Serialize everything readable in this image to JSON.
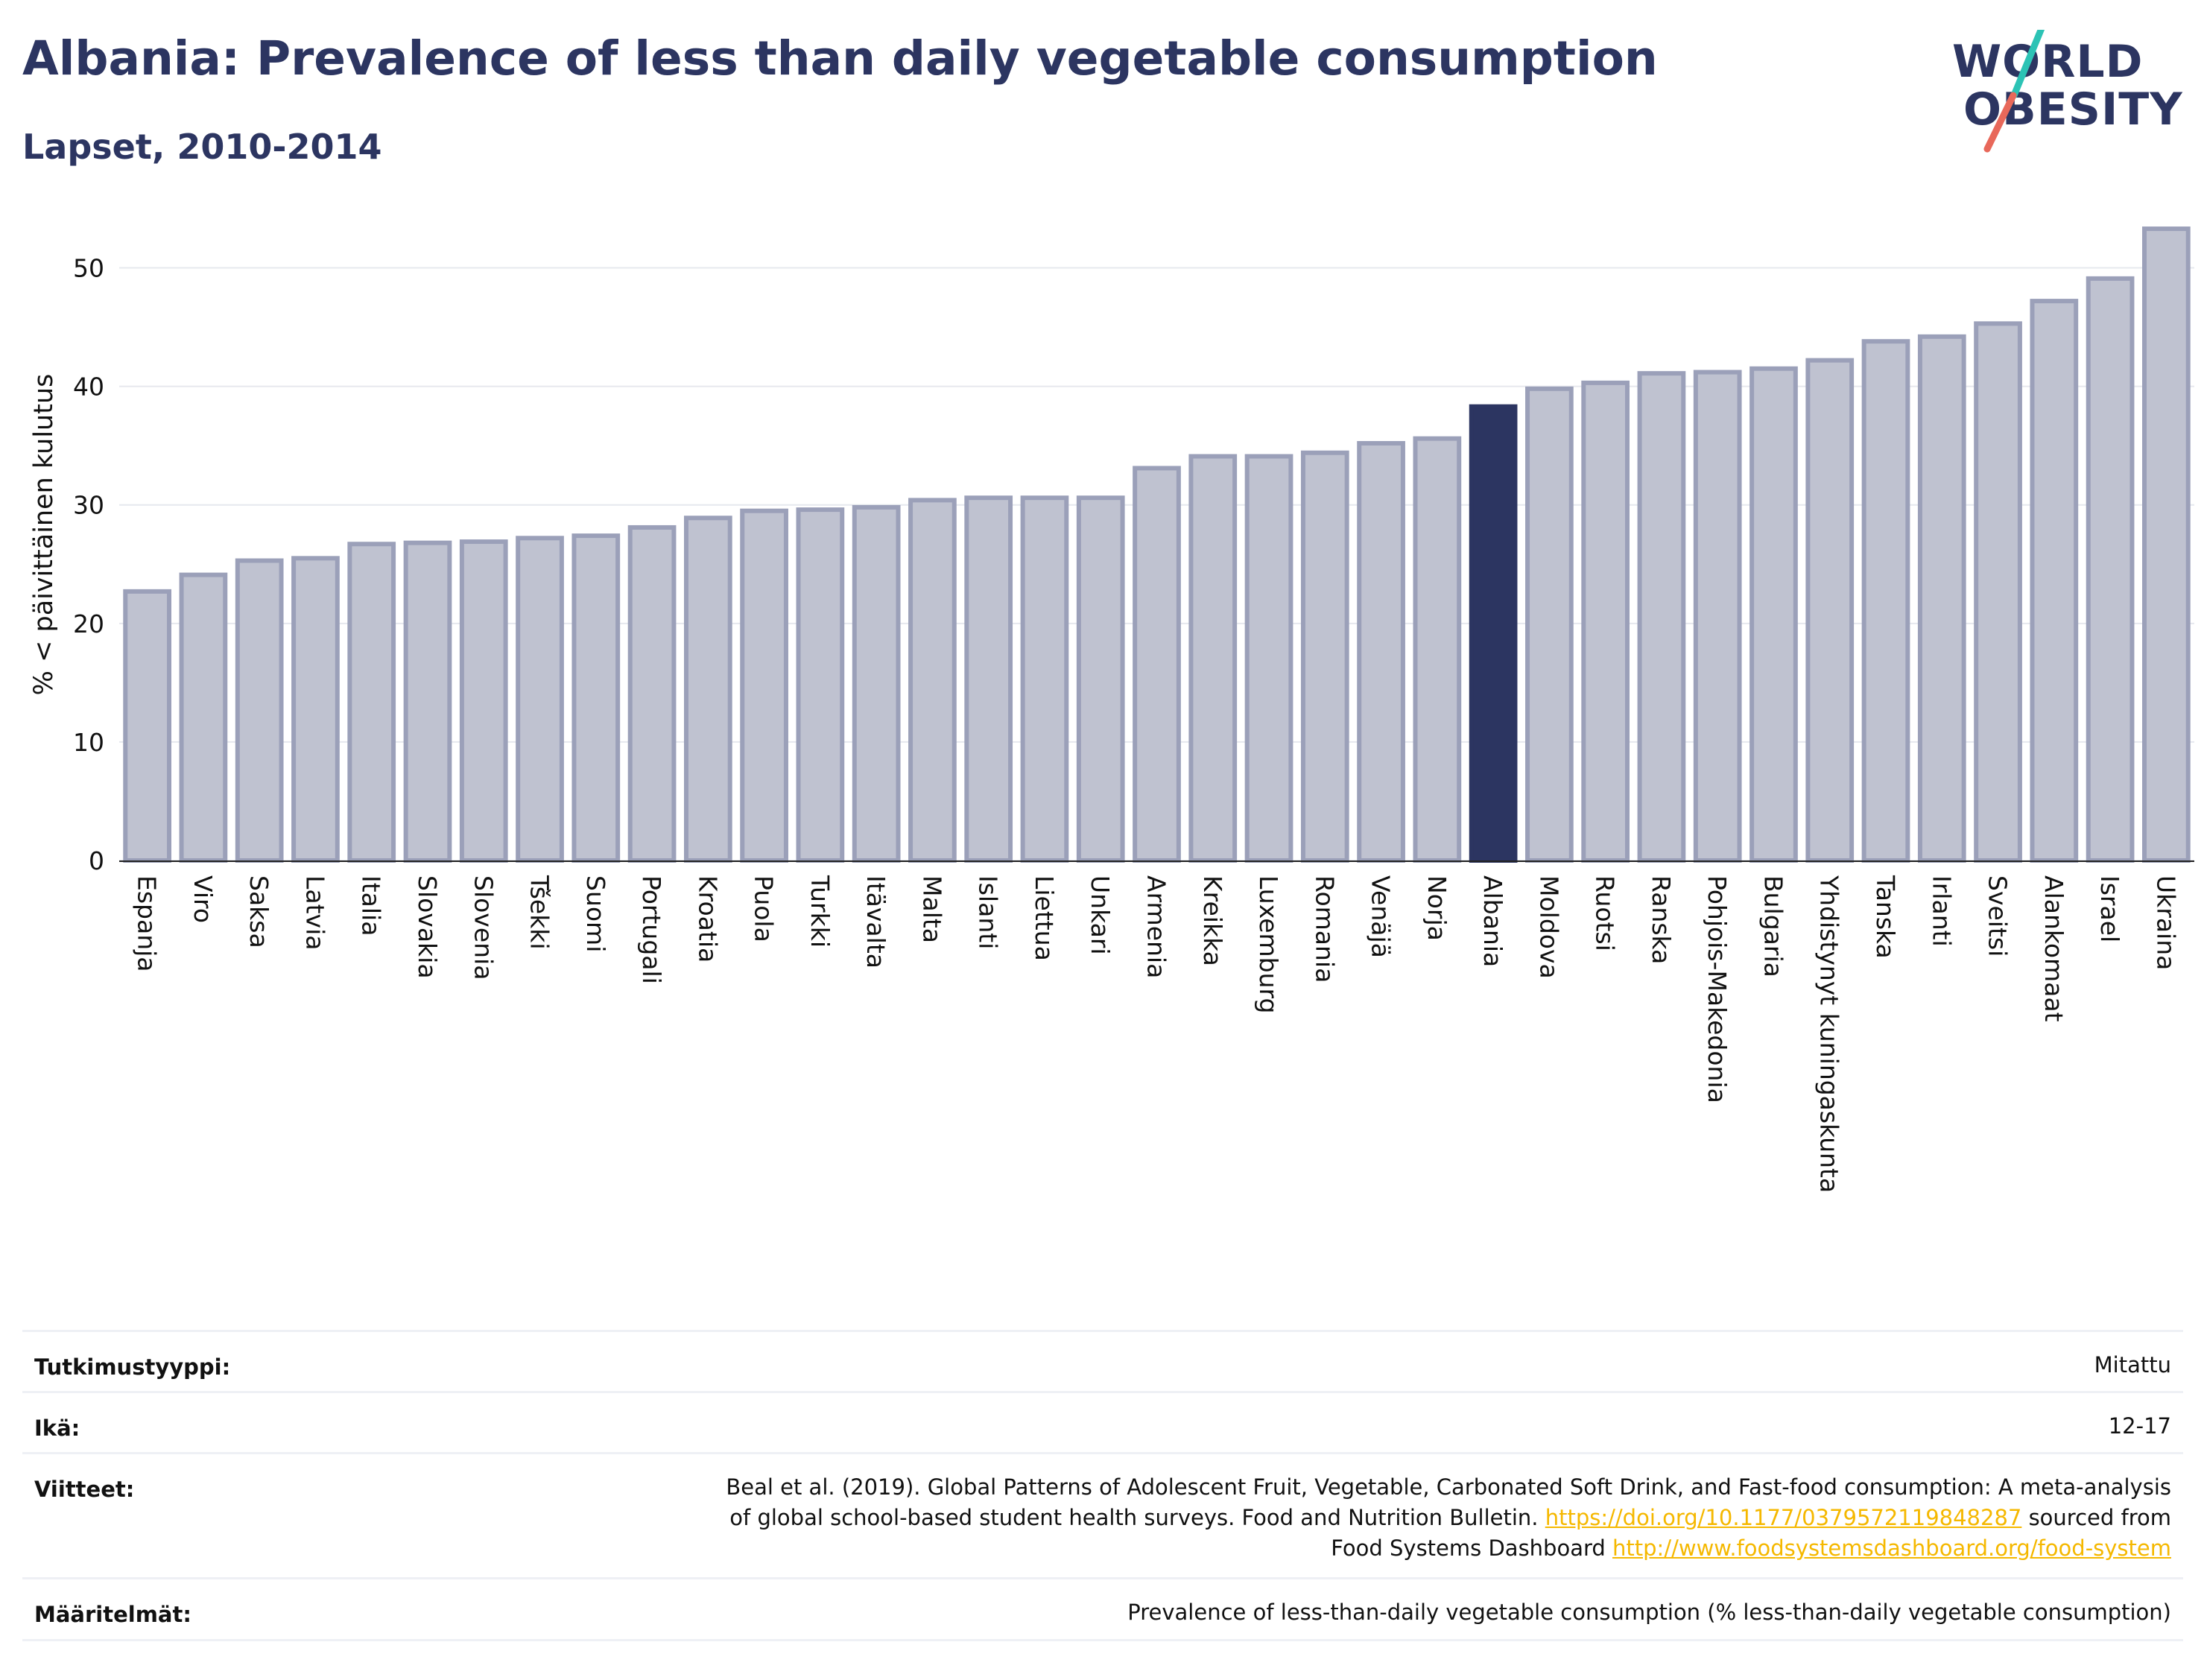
{
  "title": "Albania: Prevalence of less than daily vegetable consumption",
  "subtitle": "Lapset, 2010-2014",
  "logo": {
    "line1": "WORLD",
    "line2": "OBESITY",
    "accent_colors": [
      "#2cc3b5",
      "#e8685a"
    ]
  },
  "colors": {
    "bar": "#bfc2d0",
    "bar_border": "#9ba0b9",
    "highlight": "#2c3561",
    "grid": "#e6e8ee"
  },
  "chart_data": {
    "type": "bar",
    "ylabel": "% < päivittäinen kulutus",
    "xlabel": "",
    "ylim": [
      0,
      55
    ],
    "yticks": [
      0,
      10,
      20,
      30,
      40,
      50
    ],
    "grid": true,
    "highlight": "Albania",
    "categories": [
      "Espanja",
      "Viro",
      "Saksa",
      "Latvia",
      "Italia",
      "Slovakia",
      "Slovenia",
      "Tšekki",
      "Suomi",
      "Portugali",
      "Kroatia",
      "Puola",
      "Turkki",
      "Itävalta",
      "Malta",
      "Islanti",
      "Liettua",
      "Unkari",
      "Armenia",
      "Kreikka",
      "Luxemburg",
      "Romania",
      "Venäjä",
      "Norja",
      "Albania",
      "Moldova",
      "Ruotsi",
      "Ranska",
      "Pohjois-Makedonia",
      "Bulgaria",
      "Yhdistynyt kuningaskunta",
      "Tanska",
      "Irlanti",
      "Sveitsi",
      "Alankomaat",
      "Israel",
      "Ukraina"
    ],
    "values": [
      22.7,
      24.1,
      25.3,
      25.5,
      26.7,
      26.8,
      26.9,
      27.2,
      27.4,
      28.1,
      28.9,
      29.5,
      29.6,
      29.8,
      30.4,
      30.6,
      30.6,
      30.6,
      33.1,
      34.1,
      34.1,
      34.4,
      35.2,
      35.6,
      38.3,
      39.8,
      40.3,
      41.1,
      41.2,
      41.5,
      42.2,
      43.8,
      44.2,
      45.3,
      47.2,
      49.1,
      53.3
    ]
  },
  "meta": [
    {
      "label": "Tutkimustyyppi:",
      "value": "Mitattu"
    },
    {
      "label": "Ikä:",
      "value": "12-17"
    },
    {
      "label": "Viitteet:",
      "value_line1": "Beal et al. (2019). Global Patterns of Adolescent Fruit, Vegetable, Carbonated Soft Drink, and Fast-food consumption: A meta-analysis",
      "value_line2_pre": "of global school-based student health surveys. Food and Nutrition Bulletin. ",
      "link1": "https://doi.org/10.1177/0379572119848287",
      "value_line2_post": " sourced from",
      "value_line3_pre": "Food Systems Dashboard ",
      "link2": "http://www.foodsystemsdashboard.org/food-system"
    },
    {
      "label": "Määritelmät:",
      "value": "Prevalence of less-than-daily vegetable consumption (% less-than-daily vegetable consumption)"
    }
  ]
}
